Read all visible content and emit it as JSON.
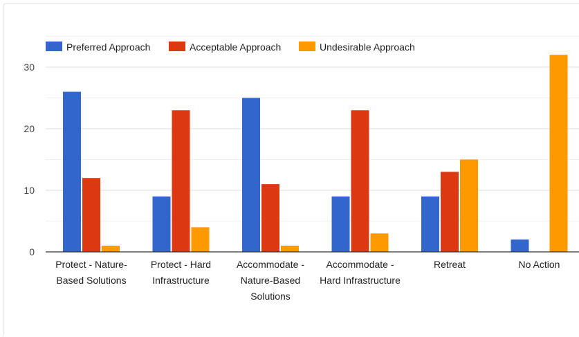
{
  "chart_data": {
    "type": "bar",
    "categories": [
      [
        "Protect - Nature-",
        "Based Solutions"
      ],
      [
        "Protect - Hard",
        "Infrastructure"
      ],
      [
        "Accommodate -",
        "Nature-Based",
        "Solutions"
      ],
      [
        "Accommodate -",
        "Hard Infrastructure"
      ],
      [
        "Retreat"
      ],
      [
        "No Action"
      ]
    ],
    "series": [
      {
        "name": "Preferred Approach",
        "color": "#3366cc",
        "values": [
          26,
          9,
          25,
          9,
          9,
          2
        ]
      },
      {
        "name": "Acceptable Approach",
        "color": "#dc3912",
        "values": [
          12,
          23,
          11,
          23,
          13,
          0
        ]
      },
      {
        "name": "Undesirable Approach",
        "color": "#ff9900",
        "values": [
          1,
          4,
          1,
          3,
          15,
          32
        ]
      }
    ],
    "yticks": [
      0,
      10,
      20,
      30
    ],
    "ylim": [
      0,
      35
    ],
    "grid": true,
    "legend_position": "top-left"
  }
}
